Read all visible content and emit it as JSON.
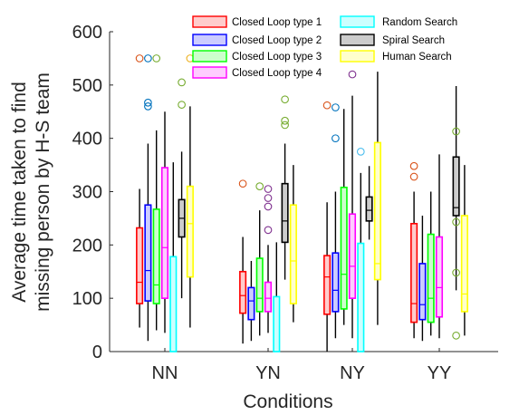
{
  "chart_data": {
    "type": "box",
    "xlabel": "Conditions",
    "ylabel_lines": [
      "Average time taken to find",
      "missing person by H-S team"
    ],
    "ylim": [
      0,
      600
    ],
    "yticks": [
      0,
      100,
      200,
      300,
      400,
      500,
      600
    ],
    "categories": [
      "NN",
      "YN",
      "NY",
      "YY"
    ],
    "grid": false,
    "legend_position": "top-right",
    "series": [
      {
        "name": "Closed Loop type 1",
        "edge_color": "#ff0000",
        "fill_color": "#ffcccc",
        "outlier_color": "#d95319",
        "boxes": [
          {
            "whisker_low": 45,
            "q1": 90,
            "median": 130,
            "q3": 232,
            "whisker_high": 305,
            "outliers": [
              550
            ]
          },
          {
            "whisker_low": 15,
            "q1": 72,
            "median": 105,
            "q3": 150,
            "whisker_high": 215,
            "outliers": [
              315
            ]
          },
          {
            "whisker_low": 0,
            "q1": 70,
            "median": 140,
            "q3": 180,
            "whisker_high": 280,
            "outliers": [
              462
            ]
          },
          {
            "whisker_low": 25,
            "q1": 55,
            "median": 90,
            "q3": 240,
            "whisker_high": 300,
            "outliers": [
              348,
              328
            ]
          }
        ]
      },
      {
        "name": "Closed Loop type 2",
        "edge_color": "#0000ff",
        "fill_color": "#ccccff",
        "outlier_color": "#0072bd",
        "boxes": [
          {
            "whisker_low": 20,
            "q1": 95,
            "median": 152,
            "q3": 275,
            "whisker_high": 390,
            "outliers": [
              550,
              467,
              460
            ]
          },
          {
            "whisker_low": 20,
            "q1": 60,
            "median": 95,
            "q3": 120,
            "whisker_high": 170,
            "outliers": []
          },
          {
            "whisker_low": 25,
            "q1": 75,
            "median": 115,
            "q3": 185,
            "whisker_high": 300,
            "outliers": [
              458,
              400
            ]
          },
          {
            "whisker_low": 20,
            "q1": 60,
            "median": 88,
            "q3": 165,
            "whisker_high": 255,
            "outliers": []
          }
        ]
      },
      {
        "name": "Closed Loop type 3",
        "edge_color": "#00ff00",
        "fill_color": "#ccffcc",
        "outlier_color": "#77ac30",
        "boxes": [
          {
            "whisker_low": 40,
            "q1": 90,
            "median": 125,
            "q3": 267,
            "whisker_high": 415,
            "outliers": [
              550
            ]
          },
          {
            "whisker_low": 30,
            "q1": 75,
            "median": 100,
            "q3": 175,
            "whisker_high": 265,
            "outliers": [
              310
            ]
          },
          {
            "whisker_low": 50,
            "q1": 80,
            "median": 145,
            "q3": 308,
            "whisker_high": 455,
            "outliers": []
          },
          {
            "whisker_low": 30,
            "q1": 55,
            "median": 100,
            "q3": 220,
            "whisker_high": 300,
            "outliers": []
          }
        ]
      },
      {
        "name": "Closed Loop type 4",
        "edge_color": "#ff00ff",
        "fill_color": "#ffccff",
        "outlier_color": "#7e2f8e",
        "boxes": [
          {
            "whisker_low": 35,
            "q1": 100,
            "median": 195,
            "q3": 345,
            "whisker_high": 450,
            "outliers": []
          },
          {
            "whisker_low": 35,
            "q1": 75,
            "median": 100,
            "q3": 130,
            "whisker_high": 200,
            "outliers": [
              305,
              288,
              272,
              228
            ]
          },
          {
            "whisker_low": 25,
            "q1": 100,
            "median": 160,
            "q3": 258,
            "whisker_high": 480,
            "outliers": [
              520
            ]
          },
          {
            "whisker_low": 25,
            "q1": 65,
            "median": 120,
            "q3": 215,
            "whisker_high": 370,
            "outliers": []
          }
        ]
      },
      {
        "name": "Random Search",
        "edge_color": "#00ffff",
        "fill_color": "#ccffff",
        "outlier_color": "#4dbeee",
        "boxes": [
          {
            "whisker_low": 0,
            "q1": 0,
            "median": 0,
            "q3": 178,
            "whisker_high": 355,
            "outliers": []
          },
          {
            "whisker_low": 0,
            "q1": 0,
            "median": 0,
            "q3": 103,
            "whisker_high": 205,
            "outliers": []
          },
          {
            "whisker_low": 0,
            "q1": 0,
            "median": 0,
            "q3": 203,
            "whisker_high": 335,
            "outliers": [
              375
            ]
          },
          {
            "whisker_low": 0,
            "q1": 0,
            "median": 0,
            "q3": 0,
            "whisker_high": 0,
            "outliers": []
          }
        ]
      },
      {
        "name": "Spiral Search",
        "edge_color": "#000000",
        "fill_color": "#cccccc",
        "outlier_color": "#77ac30",
        "boxes": [
          {
            "whisker_low": 100,
            "q1": 215,
            "median": 250,
            "q3": 285,
            "whisker_high": 375,
            "outliers": [
              505,
              463
            ]
          },
          {
            "whisker_low": 135,
            "q1": 205,
            "median": 245,
            "q3": 315,
            "whisker_high": 390,
            "outliers": [
              473,
              433,
              425
            ]
          },
          {
            "whisker_low": 210,
            "q1": 245,
            "median": 265,
            "q3": 290,
            "whisker_high": 348,
            "outliers": []
          },
          {
            "whisker_low": 115,
            "q1": 255,
            "median": 270,
            "q3": 365,
            "whisker_high": 498,
            "outliers": [
              413,
              243,
              148,
              30
            ]
          }
        ]
      },
      {
        "name": "Human Search",
        "edge_color": "#ffff00",
        "fill_color": "#ffffcc",
        "outlier_color": "#edb120",
        "boxes": [
          {
            "whisker_low": 45,
            "q1": 140,
            "median": 240,
            "q3": 310,
            "whisker_high": 460,
            "outliers": [
              550
            ]
          },
          {
            "whisker_low": 55,
            "q1": 90,
            "median": 170,
            "q3": 275,
            "whisker_high": 350,
            "outliers": []
          },
          {
            "whisker_low": 50,
            "q1": 135,
            "median": 165,
            "q3": 392,
            "whisker_high": 525,
            "outliers": []
          },
          {
            "whisker_low": 30,
            "q1": 75,
            "median": 108,
            "q3": 255,
            "whisker_high": 350,
            "outliers": []
          }
        ]
      }
    ]
  }
}
